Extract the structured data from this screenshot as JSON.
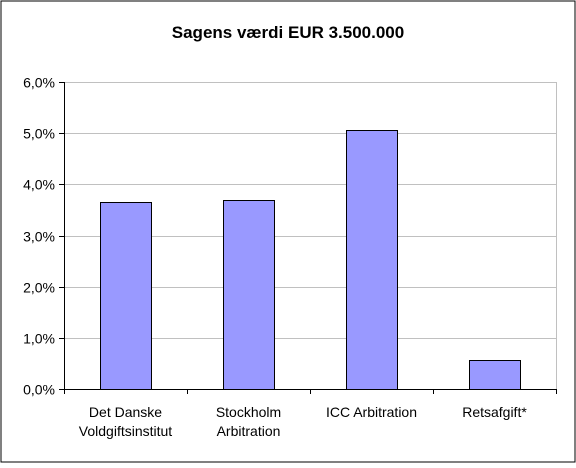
{
  "chart_data": {
    "type": "bar",
    "title": "Sagens værdi EUR 3.500.000",
    "xlabel": "",
    "ylabel": "",
    "categories": [
      [
        "Det Danske",
        "Voldgiftsinstitut"
      ],
      [
        "Stockholm",
        "Arbitration"
      ],
      [
        "ICC Arbitration"
      ],
      [
        "Retsafgift*"
      ]
    ],
    "values": [
      0.0365,
      0.037,
      0.0507,
      0.0056
    ],
    "ylim": [
      0,
      0.06
    ],
    "yticks": [
      "0,0%",
      "1,0%",
      "2,0%",
      "3,0%",
      "4,0%",
      "5,0%",
      "6,0%"
    ],
    "grid": true,
    "legend": "none",
    "colors": {
      "bar": "#9999ff",
      "bar_edge": "#000000",
      "grid": "#c0c0c0",
      "frame": "#000000",
      "axis": "#000000"
    }
  }
}
